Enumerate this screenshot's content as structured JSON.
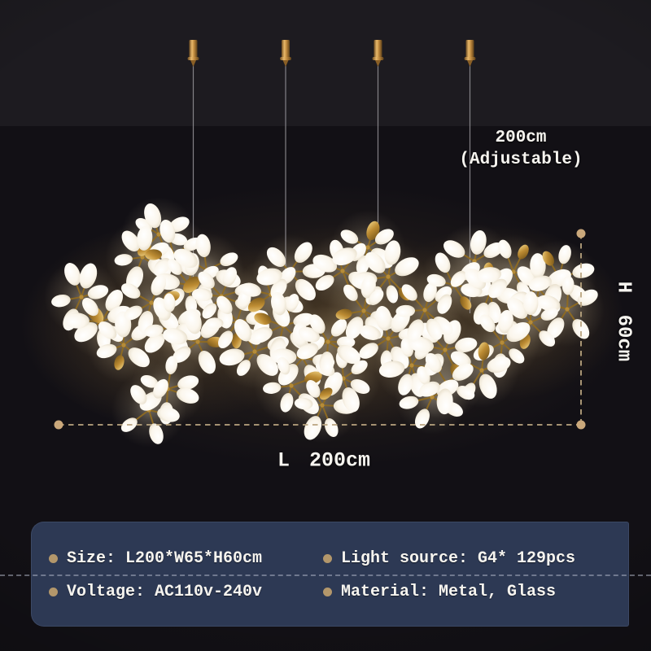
{
  "annotations": {
    "drop_line1": "200cm",
    "drop_line2": "(Adjustable)",
    "height_label": "H 60cm",
    "length_label": "L 200cm"
  },
  "specs": {
    "items": [
      {
        "text": "Size: L200*W65*H60cm"
      },
      {
        "text": "Light source: G4* 129pcs"
      },
      {
        "text": "Voltage: AC110v-240v"
      },
      {
        "text": "Material: Metal, Glass"
      }
    ]
  },
  "colors": {
    "panel_bg": "#2d3954",
    "accent_tan": "#b3976b",
    "dash_line": "#b9a47f",
    "dot": "#caa87b",
    "gold_metal": "#c79a3d",
    "text": "#f6f4ef",
    "background": "#121015",
    "background_top_band": "#1d1b20"
  }
}
